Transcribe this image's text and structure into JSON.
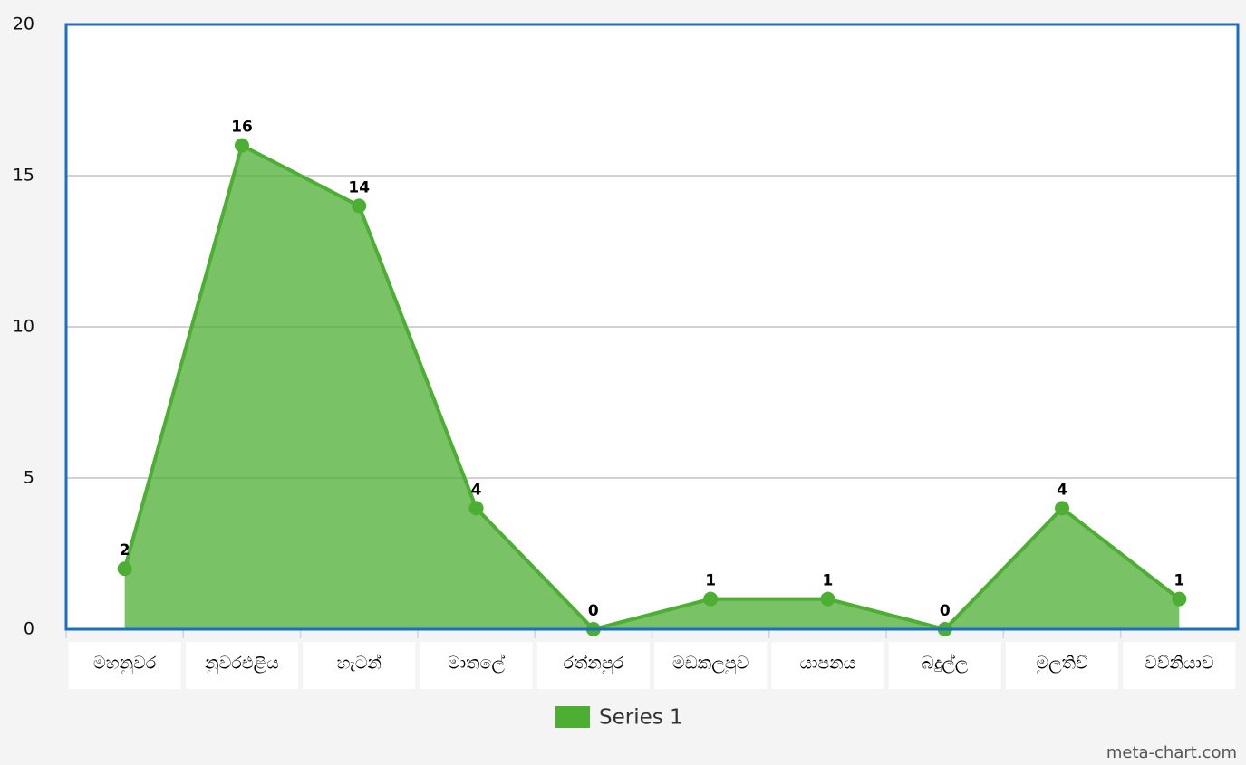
{
  "chart_data": {
    "type": "area",
    "categories": [
      "මහනුවර",
      "නුවරඑළිය",
      "හැටන්",
      "මාතලේ",
      "රත්නපුර",
      "මඩකලපුව",
      "යාපනය",
      "බදුල්ල",
      "මුලතිව්",
      "වව්නියාව"
    ],
    "series": [
      {
        "name": "Series 1",
        "color": "#4cae32",
        "values": [
          2,
          16,
          14,
          4,
          0,
          1,
          1,
          0,
          4,
          1
        ]
      }
    ],
    "ylim": [
      0,
      20
    ],
    "yticks": [
      0,
      5,
      10,
      15,
      20
    ],
    "grid": true,
    "legend": "bottom",
    "credit": "meta-chart.com"
  }
}
